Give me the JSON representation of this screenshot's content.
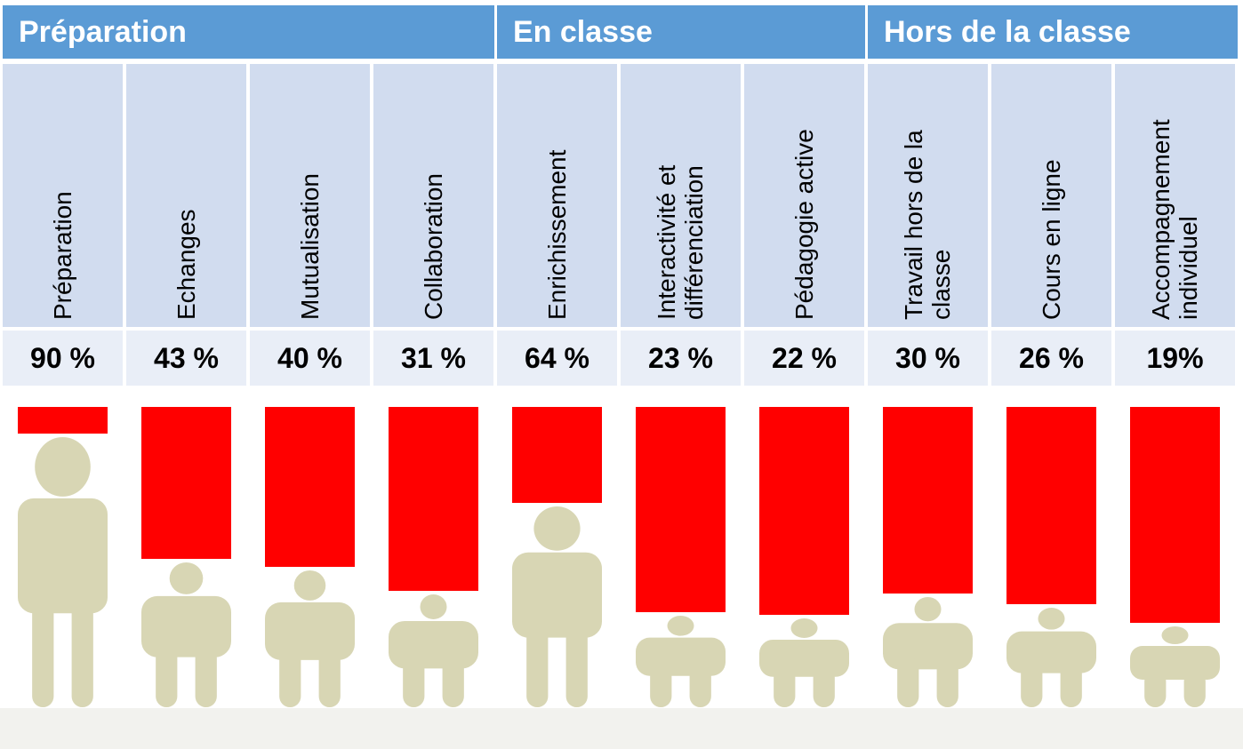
{
  "groups": [
    {
      "label": "Préparation"
    },
    {
      "label": "En classe"
    },
    {
      "label": "Hors de la classe"
    }
  ],
  "chart_data": {
    "type": "bar",
    "categories": [
      "Préparation",
      "Echanges",
      "Mutualisation",
      "Collaboration",
      "Enrichissement",
      "Interactivité et différenciation",
      "Pédagogie active",
      "Travail hors de la classe",
      "Cours en ligne",
      "Accompagnement individuel"
    ],
    "category_lines": [
      [
        "Préparation"
      ],
      [
        "Echanges"
      ],
      [
        "Mutualisation"
      ],
      [
        "Collaboration"
      ],
      [
        "Enrichissement"
      ],
      [
        "Interactivité et",
        "différenciation"
      ],
      [
        "Pédagogie active"
      ],
      [
        "Travail hors de la",
        "classe"
      ],
      [
        "Cours en ligne"
      ],
      [
        "Accompagnement",
        "individuel"
      ]
    ],
    "value_labels": [
      "90 %",
      "43 %",
      "40 %",
      "31 %",
      "64 %",
      "23 %",
      "22 %",
      "30 %",
      "26 %",
      "19%"
    ],
    "values": [
      90,
      43,
      40,
      31,
      64,
      23,
      22,
      30,
      26,
      19
    ],
    "group_of_category": [
      0,
      0,
      0,
      0,
      1,
      1,
      1,
      2,
      2,
      2
    ],
    "ylim": [
      0,
      100
    ],
    "colors": {
      "header": "#5b9bd5",
      "category_bg": "#d1dcef",
      "value_bg": "#e9eef7",
      "bar": "#ff0000",
      "figure": "#d8d6b4"
    }
  }
}
